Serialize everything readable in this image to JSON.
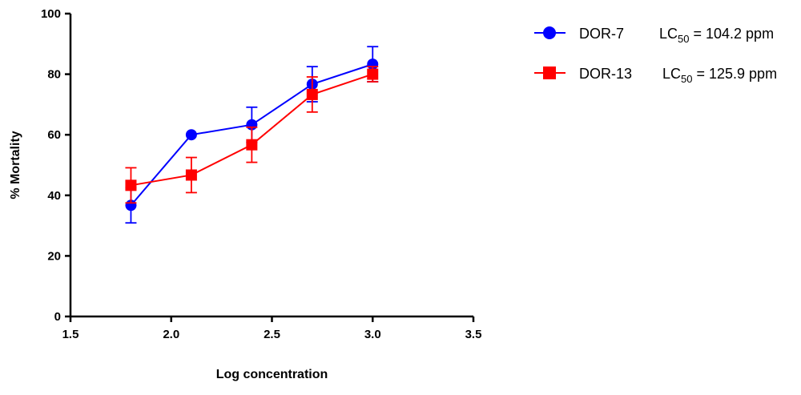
{
  "chart_data": {
    "type": "line",
    "xlabel": "Log concentration",
    "ylabel": "% Mortality",
    "xlim": [
      1.5,
      3.5
    ],
    "ylim": [
      0,
      100
    ],
    "xticks": [
      "1.5",
      "2.0",
      "2.5",
      "3.0",
      "3.5"
    ],
    "yticks": [
      "0",
      "20",
      "40",
      "60",
      "80",
      "100"
    ],
    "grid": false,
    "legend_position": "top-right",
    "series": [
      {
        "name": "DOR-7",
        "marker": "circle",
        "color": "#0000ff",
        "x": [
          1.8,
          2.1,
          2.4,
          2.7,
          3.0
        ],
        "y": [
          36.7,
          60.0,
          63.3,
          76.7,
          83.3
        ],
        "err": [
          5.8,
          0.0,
          5.8,
          5.8,
          5.8
        ],
        "lc_main": "LC",
        "lc_sub": "50",
        "lc_value": " = 104.2 ppm"
      },
      {
        "name": "DOR-13",
        "marker": "square",
        "color": "#ff0000",
        "x": [
          1.8,
          2.1,
          2.4,
          2.7,
          3.0
        ],
        "y": [
          43.3,
          46.7,
          56.7,
          73.3,
          80.0
        ],
        "err": [
          5.8,
          5.8,
          5.8,
          5.8,
          2.5
        ],
        "lc_main": "LC",
        "lc_sub": "50",
        "lc_value": " = 125.9 ppm"
      }
    ]
  }
}
